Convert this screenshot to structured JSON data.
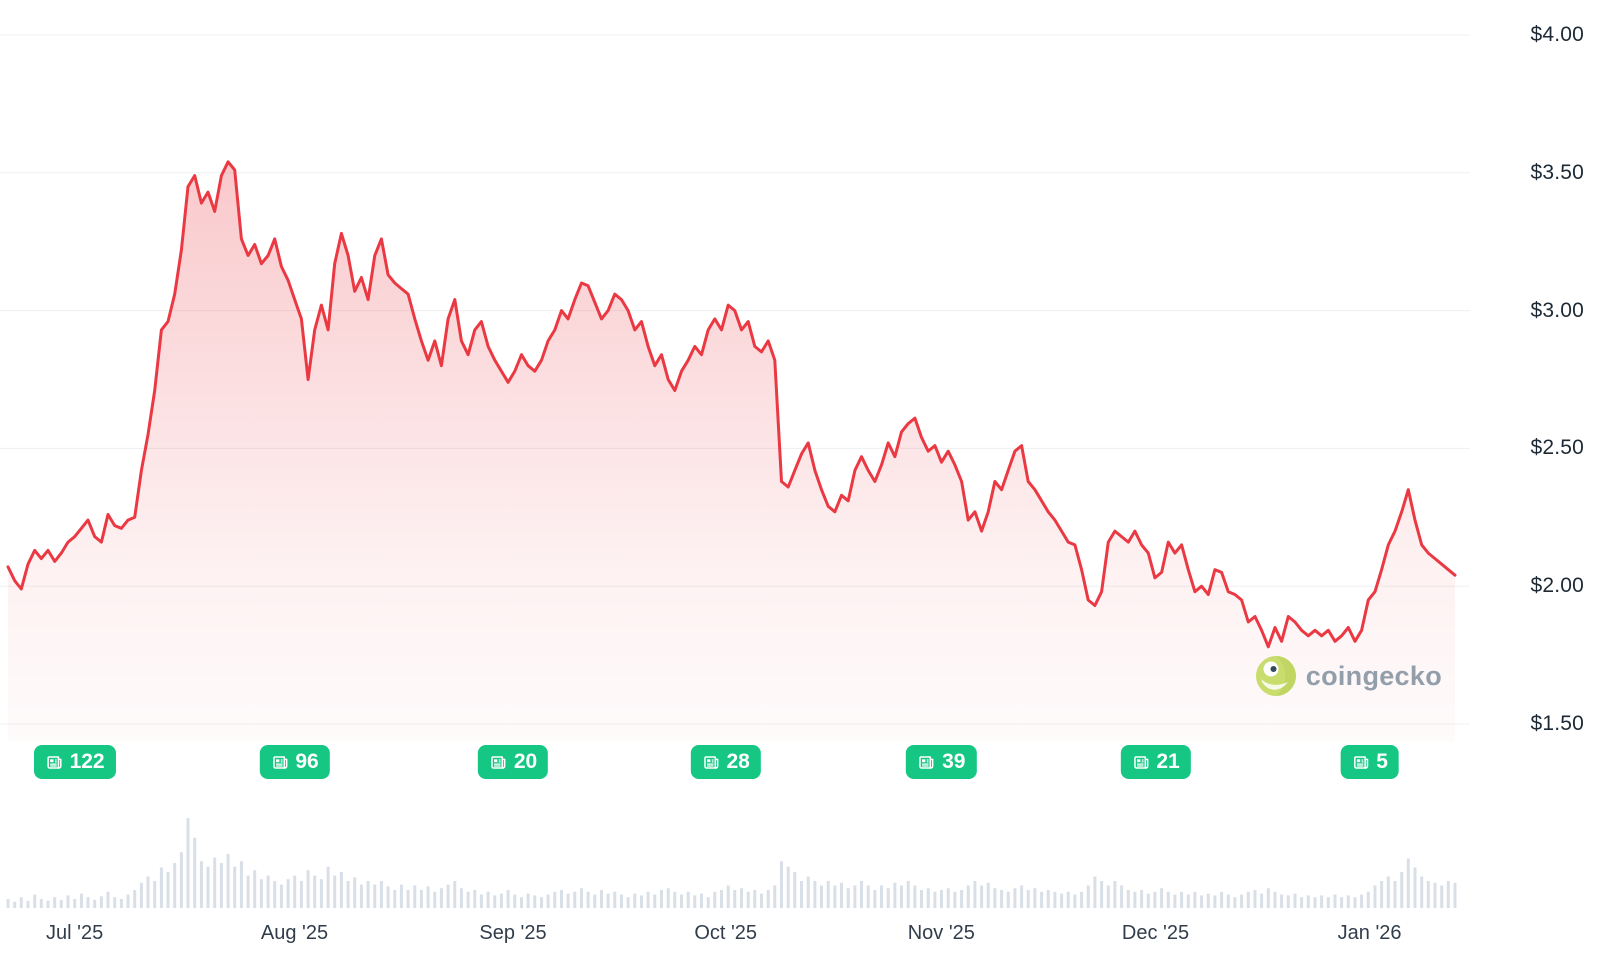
{
  "watermark": {
    "text": "coingecko",
    "logo": "gecko-logo-icon"
  },
  "chart_data": {
    "type": "area",
    "title": "",
    "currency": "USD",
    "legend": "none",
    "grid": "horizontal",
    "y_axis": {
      "position": "right",
      "ticks": [
        "$4.00",
        "$3.50",
        "$3.00",
        "$2.50",
        "$2.00",
        "$1.50"
      ],
      "values": [
        4.0,
        3.5,
        3.0,
        2.5,
        2.0,
        1.5
      ],
      "min": 1.5,
      "max": 4.0
    },
    "x_axis": {
      "ticks": [
        {
          "label": "Jul '25",
          "pos": 0.046
        },
        {
          "label": "Aug '25",
          "pos": 0.198
        },
        {
          "label": "Sep '25",
          "pos": 0.349
        },
        {
          "label": "Oct '25",
          "pos": 0.496
        },
        {
          "label": "Nov '25",
          "pos": 0.645
        },
        {
          "label": "Dec '25",
          "pos": 0.793
        },
        {
          "label": "Jan '26",
          "pos": 0.941
        }
      ]
    },
    "news_badges": [
      {
        "icon": "newspaper-icon",
        "count": 122,
        "pos": 0.046
      },
      {
        "icon": "newspaper-icon",
        "count": 96,
        "pos": 0.198
      },
      {
        "icon": "newspaper-icon",
        "count": 20,
        "pos": 0.349
      },
      {
        "icon": "newspaper-icon",
        "count": 28,
        "pos": 0.496
      },
      {
        "icon": "newspaper-icon",
        "count": 39,
        "pos": 0.645
      },
      {
        "icon": "newspaper-icon",
        "count": 21,
        "pos": 0.793
      },
      {
        "icon": "newspaper-icon",
        "count": 5,
        "pos": 0.941
      }
    ],
    "prices": [
      2.07,
      2.02,
      1.99,
      2.08,
      2.13,
      2.1,
      2.13,
      2.09,
      2.12,
      2.16,
      2.18,
      2.21,
      2.24,
      2.18,
      2.16,
      2.26,
      2.22,
      2.21,
      2.24,
      2.25,
      2.42,
      2.55,
      2.71,
      2.93,
      2.96,
      3.06,
      3.22,
      3.45,
      3.49,
      3.39,
      3.43,
      3.36,
      3.49,
      3.54,
      3.51,
      3.26,
      3.2,
      3.24,
      3.17,
      3.2,
      3.26,
      3.16,
      3.11,
      3.04,
      2.97,
      2.75,
      2.93,
      3.02,
      2.93,
      3.17,
      3.28,
      3.2,
      3.07,
      3.12,
      3.04,
      3.2,
      3.26,
      3.13,
      3.1,
      3.08,
      3.06,
      2.97,
      2.89,
      2.82,
      2.89,
      2.8,
      2.97,
      3.04,
      2.89,
      2.84,
      2.93,
      2.96,
      2.87,
      2.82,
      2.78,
      2.74,
      2.78,
      2.84,
      2.8,
      2.78,
      2.82,
      2.89,
      2.93,
      3.0,
      2.97,
      3.04,
      3.1,
      3.09,
      3.03,
      2.97,
      3.0,
      3.06,
      3.04,
      3.0,
      2.93,
      2.96,
      2.87,
      2.8,
      2.84,
      2.75,
      2.71,
      2.78,
      2.82,
      2.87,
      2.84,
      2.93,
      2.97,
      2.93,
      3.02,
      3.0,
      2.93,
      2.96,
      2.87,
      2.85,
      2.89,
      2.82,
      2.38,
      2.36,
      2.42,
      2.48,
      2.52,
      2.42,
      2.35,
      2.29,
      2.27,
      2.33,
      2.31,
      2.42,
      2.47,
      2.42,
      2.38,
      2.44,
      2.52,
      2.47,
      2.56,
      2.59,
      2.61,
      2.54,
      2.49,
      2.51,
      2.45,
      2.49,
      2.44,
      2.38,
      2.24,
      2.27,
      2.2,
      2.27,
      2.38,
      2.35,
      2.42,
      2.49,
      2.51,
      2.38,
      2.35,
      2.31,
      2.27,
      2.24,
      2.2,
      2.16,
      2.15,
      2.06,
      1.95,
      1.93,
      1.98,
      2.16,
      2.2,
      2.18,
      2.16,
      2.2,
      2.15,
      2.12,
      2.03,
      2.05,
      2.16,
      2.12,
      2.15,
      2.06,
      1.98,
      2.0,
      1.97,
      2.06,
      2.05,
      1.98,
      1.97,
      1.95,
      1.87,
      1.89,
      1.84,
      1.78,
      1.85,
      1.8,
      1.89,
      1.87,
      1.84,
      1.82,
      1.84,
      1.82,
      1.84,
      1.8,
      1.82,
      1.85,
      1.8,
      1.84,
      1.95,
      1.98,
      2.06,
      2.15,
      2.2,
      2.27,
      2.35,
      2.24,
      2.15,
      2.12,
      2.1,
      2.08,
      2.06,
      2.04
    ],
    "volume": [
      0.1,
      0.07,
      0.12,
      0.08,
      0.15,
      0.1,
      0.08,
      0.12,
      0.09,
      0.14,
      0.1,
      0.16,
      0.12,
      0.09,
      0.13,
      0.18,
      0.12,
      0.1,
      0.15,
      0.2,
      0.28,
      0.35,
      0.3,
      0.45,
      0.4,
      0.5,
      0.62,
      1.0,
      0.78,
      0.52,
      0.46,
      0.56,
      0.5,
      0.6,
      0.46,
      0.52,
      0.36,
      0.42,
      0.32,
      0.36,
      0.3,
      0.26,
      0.32,
      0.36,
      0.3,
      0.42,
      0.36,
      0.32,
      0.46,
      0.36,
      0.4,
      0.3,
      0.34,
      0.26,
      0.3,
      0.26,
      0.3,
      0.24,
      0.2,
      0.26,
      0.2,
      0.25,
      0.2,
      0.24,
      0.18,
      0.22,
      0.26,
      0.3,
      0.22,
      0.18,
      0.2,
      0.15,
      0.18,
      0.14,
      0.16,
      0.2,
      0.15,
      0.12,
      0.16,
      0.14,
      0.12,
      0.15,
      0.18,
      0.2,
      0.16,
      0.18,
      0.22,
      0.18,
      0.15,
      0.2,
      0.16,
      0.18,
      0.15,
      0.12,
      0.16,
      0.14,
      0.18,
      0.15,
      0.2,
      0.22,
      0.18,
      0.15,
      0.18,
      0.14,
      0.16,
      0.12,
      0.18,
      0.2,
      0.25,
      0.2,
      0.22,
      0.18,
      0.2,
      0.16,
      0.2,
      0.25,
      0.52,
      0.46,
      0.4,
      0.3,
      0.35,
      0.3,
      0.25,
      0.3,
      0.25,
      0.28,
      0.22,
      0.25,
      0.3,
      0.25,
      0.2,
      0.25,
      0.22,
      0.28,
      0.25,
      0.3,
      0.25,
      0.2,
      0.22,
      0.18,
      0.2,
      0.22,
      0.18,
      0.2,
      0.25,
      0.3,
      0.25,
      0.28,
      0.22,
      0.2,
      0.18,
      0.22,
      0.25,
      0.2,
      0.22,
      0.18,
      0.2,
      0.18,
      0.16,
      0.18,
      0.15,
      0.18,
      0.25,
      0.35,
      0.3,
      0.25,
      0.3,
      0.25,
      0.2,
      0.18,
      0.2,
      0.16,
      0.18,
      0.22,
      0.18,
      0.15,
      0.18,
      0.15,
      0.18,
      0.14,
      0.16,
      0.14,
      0.18,
      0.15,
      0.12,
      0.15,
      0.18,
      0.2,
      0.16,
      0.22,
      0.18,
      0.15,
      0.14,
      0.16,
      0.12,
      0.14,
      0.12,
      0.14,
      0.12,
      0.15,
      0.12,
      0.14,
      0.12,
      0.15,
      0.18,
      0.25,
      0.3,
      0.35,
      0.3,
      0.4,
      0.55,
      0.45,
      0.35,
      0.3,
      0.28,
      0.25,
      0.3,
      0.28
    ],
    "colors": {
      "line": "#ea3943",
      "badge": "#16c784",
      "volume": "#d9dfe7",
      "grid": "#edf0f3",
      "axis_text": "#1d2a35",
      "watermark_text": "#939eab"
    }
  }
}
